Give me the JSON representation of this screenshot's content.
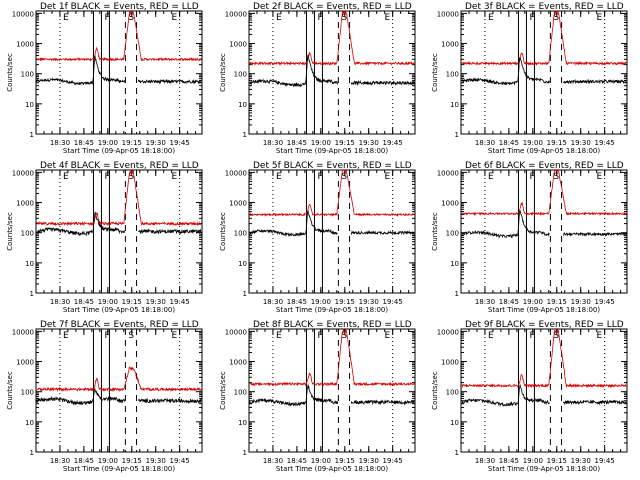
{
  "chart_data": {
    "type": "line",
    "layout": "3x3-grid",
    "x_tick_labels": [
      "18:30",
      "18:45",
      "19:00",
      "19:15",
      "19:30",
      "19:45"
    ],
    "x_ticks_min_after_1815": [
      15,
      30,
      45,
      60,
      75,
      90
    ],
    "x_range_min_after_1815": [
      0,
      104
    ],
    "xlabel": "Start Time (09-Apr-05 18:18:00)",
    "ylabel": "Counts/sec",
    "y_scale": "log",
    "ylim": [
      1,
      12000
    ],
    "y_tick_labels": [
      "1",
      "10",
      "100",
      "1000",
      "10000"
    ],
    "y_tick_values": [
      1,
      10,
      100,
      1000,
      10000
    ],
    "grid": false,
    "series_colors": {
      "events": "#000000",
      "lld": "#d40000"
    },
    "solid_markers_min": [
      36,
      41,
      46
    ],
    "dashed_markers_min": [
      56,
      63
    ],
    "dotted_markers_min": [
      15,
      90
    ],
    "region_labels": [
      "E",
      "F",
      "S",
      "E"
    ],
    "panels": [
      {
        "title": "Det 1f BLACK = Events, RED = LLD",
        "lld_base": 300,
        "lld_peak": 11000,
        "ev_base": 55,
        "ev_spike": 350,
        "noise": 0.08
      },
      {
        "title": "Det 2f BLACK = Events, RED = LLD",
        "lld_base": 220,
        "lld_peak": 11000,
        "ev_base": 50,
        "ev_spike": 400,
        "noise": 0.09
      },
      {
        "title": "Det 3f BLACK = Events, RED = LLD",
        "lld_base": 220,
        "lld_peak": 11000,
        "ev_base": 55,
        "ev_spike": 380,
        "noise": 0.08
      },
      {
        "title": "Det 4f BLACK = Events, RED = LLD",
        "lld_base": 200,
        "lld_peak": 10500,
        "ev_base": 110,
        "ev_spike": 500,
        "noise": 0.1
      },
      {
        "title": "Det 5f BLACK = Events, RED = LLD",
        "lld_base": 400,
        "lld_peak": 11500,
        "ev_base": 100,
        "ev_spike": 520,
        "noise": 0.07
      },
      {
        "title": "Det 6f BLACK = Events, RED = LLD",
        "lld_base": 430,
        "lld_peak": 11500,
        "ev_base": 90,
        "ev_spike": 560,
        "noise": 0.07
      },
      {
        "title": "Det 7f BLACK = Events, RED = LLD",
        "lld_base": 120,
        "lld_peak": 600,
        "ev_base": 50,
        "ev_spike": 130,
        "noise": 0.1
      },
      {
        "title": "Det 8f BLACK = Events, RED = LLD",
        "lld_base": 180,
        "lld_peak": 10500,
        "ev_base": 45,
        "ev_spike": 160,
        "noise": 0.09
      },
      {
        "title": "Det 9f BLACK = Events, RED = LLD",
        "lld_base": 160,
        "lld_peak": 10500,
        "ev_base": 45,
        "ev_spike": 160,
        "noise": 0.09
      }
    ]
  }
}
